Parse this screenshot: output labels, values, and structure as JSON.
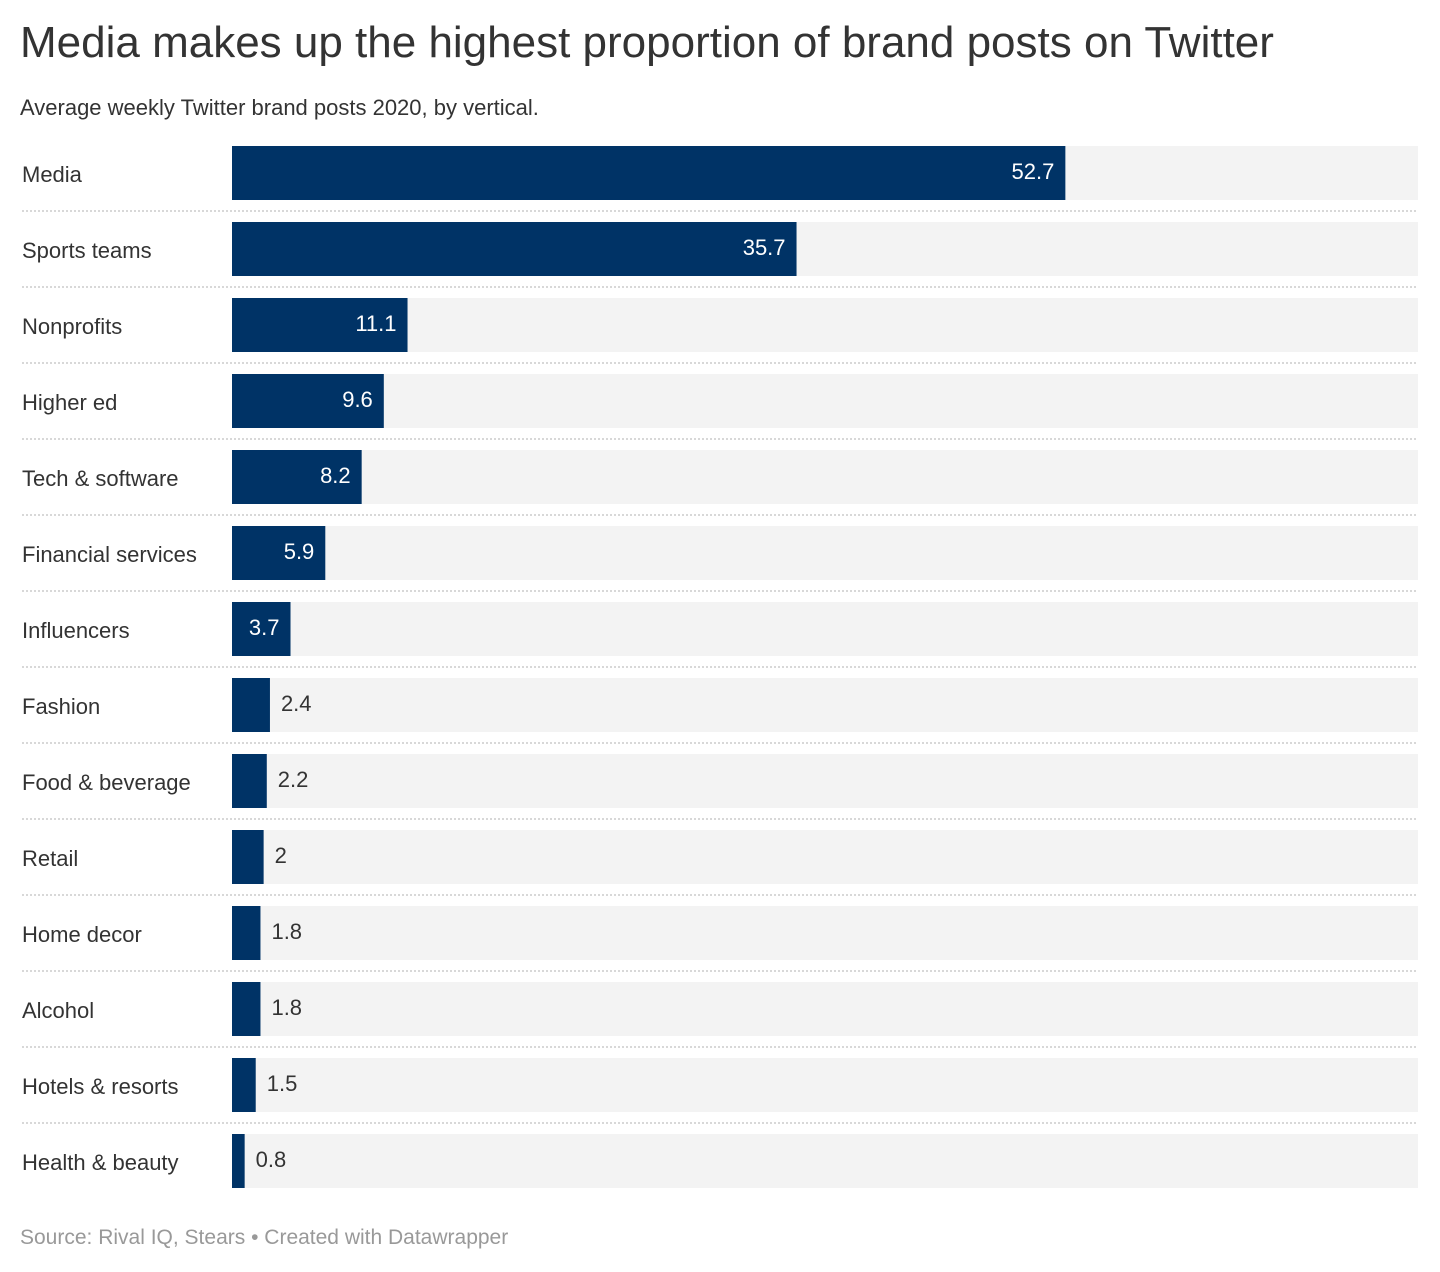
{
  "title": "Media makes up the highest proportion of brand posts on Twitter",
  "subtitle": "Average weekly Twitter brand posts 2020, by vertical.",
  "footer": {
    "source": "Source: Rival IQ, Stears",
    "separator": " • ",
    "credit": "Created with Datawrapper"
  },
  "colors": {
    "bar": "#003366",
    "track": "#f3f3f3",
    "label_inside": "#ffffff",
    "label_outside": "#333333",
    "divider": "#cccccc"
  },
  "chart_data": {
    "type": "bar",
    "orientation": "horizontal",
    "categories": [
      "Media",
      "Sports teams",
      "Nonprofits",
      "Higher ed",
      "Tech & software",
      "Financial services",
      "Influencers",
      "Fashion",
      "Food & beverage",
      "Retail",
      "Home decor",
      "Alcohol",
      "Hotels & resorts",
      "Health & beauty"
    ],
    "values": [
      52.7,
      35.7,
      11.1,
      9.6,
      8.2,
      5.9,
      3.7,
      2.4,
      2.2,
      2,
      1.8,
      1.8,
      1.5,
      0.8
    ],
    "value_labels": [
      "52.7",
      "35.7",
      "11.1",
      "9.6",
      "8.2",
      "5.9",
      "3.7",
      "2.4",
      "2.2",
      "2",
      "1.8",
      "1.8",
      "1.5",
      "0.8"
    ],
    "xlim": [
      0,
      75
    ],
    "grid": false,
    "legend": "none"
  }
}
